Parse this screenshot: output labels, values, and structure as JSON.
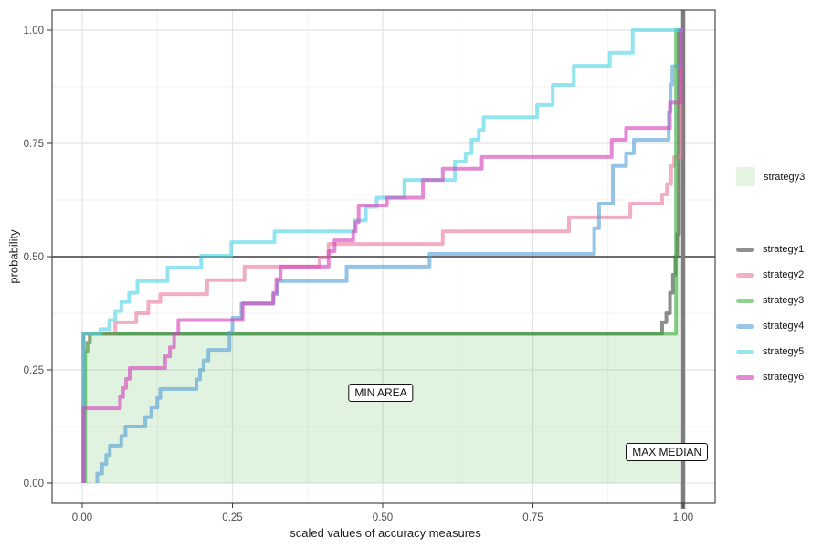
{
  "chart_data": {
    "type": "line",
    "subtype": "ecdf_step",
    "title": "",
    "xlabel": "scaled values of accuracy measures",
    "ylabel": "probability",
    "xlim": [
      0,
      1
    ],
    "ylim": [
      0,
      1
    ],
    "grid": "major+minor",
    "legend_position": "right",
    "x_ticks": [
      {
        "v": 0.0,
        "label": "0.00"
      },
      {
        "v": 0.25,
        "label": "0.25"
      },
      {
        "v": 0.5,
        "label": "0.50"
      },
      {
        "v": 0.75,
        "label": "0.75"
      },
      {
        "v": 1.0,
        "label": "1.00"
      }
    ],
    "y_ticks": [
      {
        "v": 0.0,
        "label": "0.00"
      },
      {
        "v": 0.25,
        "label": "0.25"
      },
      {
        "v": 0.5,
        "label": "0.50"
      },
      {
        "v": 0.75,
        "label": "0.75"
      },
      {
        "v": 1.0,
        "label": "1.00"
      }
    ],
    "reference_lines": {
      "hline_y": 0.5,
      "vline_x": 1.0,
      "hline_color": "#6b6b6b",
      "vline_color": "#7d7d7d"
    },
    "annotations": [
      {
        "text": "MIN AREA",
        "x": 0.497,
        "y": 0.2
      },
      {
        "text": "MAX MEDIAN",
        "x": 0.973,
        "y": 0.068
      }
    ],
    "area_fill": {
      "series": "strategy3",
      "color": "#3eae3e",
      "opacity": 0.16,
      "x_end": 0.995
    },
    "series": [
      {
        "name": "strategy1",
        "color": "#474747",
        "opacity": 0.62,
        "steps": [
          [
            0.002,
            0.33
          ],
          [
            0.965,
            0.355
          ],
          [
            0.972,
            0.375
          ],
          [
            0.978,
            0.42
          ],
          [
            0.983,
            0.46
          ],
          [
            0.987,
            0.5
          ],
          [
            0.99,
            0.55
          ],
          [
            0.993,
            1.0
          ]
        ]
      },
      {
        "name": "strategy2",
        "color": "#e87a9f",
        "opacity": 0.62,
        "steps": [
          [
            0.003,
            0.29
          ],
          [
            0.007,
            0.31
          ],
          [
            0.012,
            0.33
          ],
          [
            0.055,
            0.355
          ],
          [
            0.09,
            0.375
          ],
          [
            0.11,
            0.4
          ],
          [
            0.13,
            0.417
          ],
          [
            0.208,
            0.448
          ],
          [
            0.27,
            0.478
          ],
          [
            0.395,
            0.498
          ],
          [
            0.41,
            0.528
          ],
          [
            0.6,
            0.556
          ],
          [
            0.81,
            0.587
          ],
          [
            0.912,
            0.617
          ],
          [
            0.965,
            0.637
          ],
          [
            0.973,
            0.66
          ],
          [
            0.98,
            0.7
          ],
          [
            0.985,
            0.72
          ],
          [
            0.996,
            1.0
          ]
        ]
      },
      {
        "name": "strategy3",
        "color": "#3eae3e",
        "opacity": 0.62,
        "steps": [
          [
            0.005,
            0.29
          ],
          [
            0.009,
            0.31
          ],
          [
            0.013,
            0.33
          ],
          [
            0.988,
            1.0
          ]
        ]
      },
      {
        "name": "strategy4",
        "color": "#569fd6",
        "opacity": 0.62,
        "steps": [
          [
            0.025,
            0.021
          ],
          [
            0.033,
            0.042
          ],
          [
            0.04,
            0.062
          ],
          [
            0.046,
            0.083
          ],
          [
            0.065,
            0.104
          ],
          [
            0.072,
            0.125
          ],
          [
            0.105,
            0.146
          ],
          [
            0.115,
            0.167
          ],
          [
            0.125,
            0.188
          ],
          [
            0.13,
            0.208
          ],
          [
            0.19,
            0.229
          ],
          [
            0.196,
            0.25
          ],
          [
            0.202,
            0.271
          ],
          [
            0.21,
            0.294
          ],
          [
            0.245,
            0.333
          ],
          [
            0.25,
            0.365
          ],
          [
            0.265,
            0.396
          ],
          [
            0.318,
            0.417
          ],
          [
            0.325,
            0.446
          ],
          [
            0.44,
            0.478
          ],
          [
            0.578,
            0.506
          ],
          [
            0.852,
            0.563
          ],
          [
            0.86,
            0.617
          ],
          [
            0.883,
            0.7
          ],
          [
            0.905,
            0.728
          ],
          [
            0.918,
            0.758
          ],
          [
            0.976,
            0.82
          ],
          [
            0.979,
            0.88
          ],
          [
            0.982,
            0.92
          ],
          [
            0.996,
            1.0
          ]
        ]
      },
      {
        "name": "strategy5",
        "color": "#4fd5e5",
        "opacity": 0.62,
        "steps": [
          [
            0.002,
            0.33
          ],
          [
            0.03,
            0.34
          ],
          [
            0.045,
            0.36
          ],
          [
            0.055,
            0.38
          ],
          [
            0.065,
            0.4
          ],
          [
            0.078,
            0.42
          ],
          [
            0.092,
            0.446
          ],
          [
            0.142,
            0.476
          ],
          [
            0.198,
            0.502
          ],
          [
            0.248,
            0.532
          ],
          [
            0.32,
            0.556
          ],
          [
            0.453,
            0.58
          ],
          [
            0.472,
            0.61
          ],
          [
            0.49,
            0.63
          ],
          [
            0.536,
            0.669
          ],
          [
            0.62,
            0.71
          ],
          [
            0.638,
            0.728
          ],
          [
            0.648,
            0.758
          ],
          [
            0.66,
            0.78
          ],
          [
            0.668,
            0.808
          ],
          [
            0.757,
            0.835
          ],
          [
            0.783,
            0.879
          ],
          [
            0.818,
            0.921
          ],
          [
            0.878,
            0.95
          ],
          [
            0.916,
            1.0
          ]
        ]
      },
      {
        "name": "strategy6",
        "color": "#d342bb",
        "opacity": 0.62,
        "steps": [
          [
            0.002,
            0.165
          ],
          [
            0.063,
            0.19
          ],
          [
            0.068,
            0.21
          ],
          [
            0.073,
            0.23
          ],
          [
            0.079,
            0.254
          ],
          [
            0.138,
            0.28
          ],
          [
            0.146,
            0.3
          ],
          [
            0.153,
            0.33
          ],
          [
            0.16,
            0.36
          ],
          [
            0.267,
            0.397
          ],
          [
            0.318,
            0.42
          ],
          [
            0.323,
            0.45
          ],
          [
            0.33,
            0.478
          ],
          [
            0.41,
            0.512
          ],
          [
            0.42,
            0.536
          ],
          [
            0.451,
            0.556
          ],
          [
            0.455,
            0.576
          ],
          [
            0.46,
            0.613
          ],
          [
            0.507,
            0.63
          ],
          [
            0.567,
            0.669
          ],
          [
            0.6,
            0.694
          ],
          [
            0.665,
            0.72
          ],
          [
            0.881,
            0.758
          ],
          [
            0.905,
            0.784
          ],
          [
            0.978,
            0.84
          ],
          [
            0.996,
            1.0
          ]
        ]
      }
    ]
  },
  "legend": {
    "fill_legend": {
      "label": "strategy3",
      "swatch_color": "#e4f4e0"
    },
    "color_legend": {
      "items": [
        {
          "label": "strategy1",
          "key_color": "#8f8f8f"
        },
        {
          "label": "strategy2",
          "key_color": "#f1b0c5"
        },
        {
          "label": "strategy3",
          "key_color": "#8ed28e"
        },
        {
          "label": "strategy4",
          "key_color": "#9ac5e6"
        },
        {
          "label": "strategy5",
          "key_color": "#96e5ef"
        },
        {
          "label": "strategy6",
          "key_color": "#e48ad5"
        }
      ]
    }
  }
}
